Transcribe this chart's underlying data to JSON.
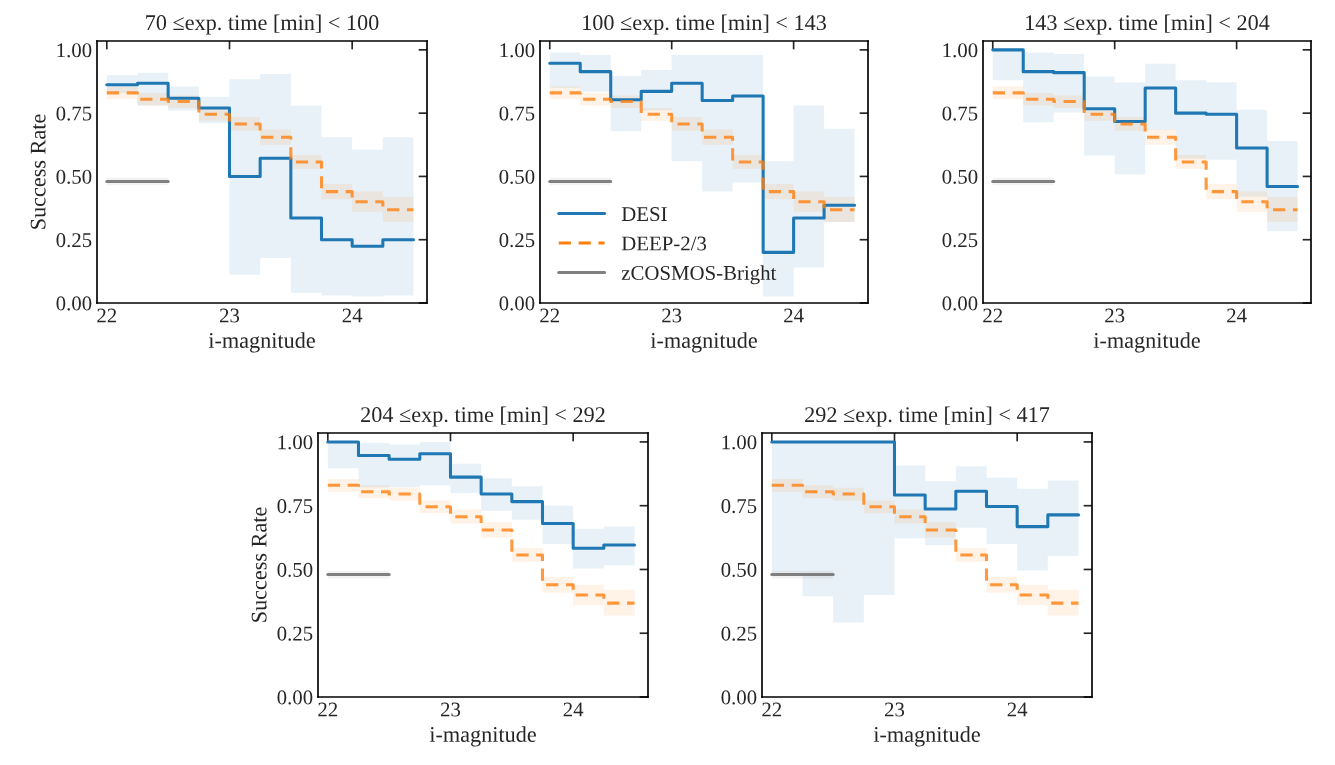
{
  "chart_data": [
    {
      "type": "step",
      "title": "70 ≤exp. time [min] < 100",
      "xlabel": "i-magnitude",
      "ylabel": "Success Rate",
      "xlim": [
        21.92,
        24.61
      ],
      "ylim": [
        0,
        1.035
      ],
      "xticks": [
        22,
        23,
        24
      ],
      "yticks": [
        {
          "value": 0,
          "label": "0.00"
        },
        {
          "value": 0.25,
          "label": "0.25"
        },
        {
          "value": 0.5,
          "label": "0.50"
        },
        {
          "value": 0.75,
          "label": "0.75"
        },
        {
          "value": 1,
          "label": "1.00"
        }
      ],
      "series": [
        {
          "color": "#1f77b4",
          "line_style": "solid",
          "x": [
            22,
            22.25,
            22.5,
            22.75,
            23,
            23.25,
            23.5,
            23.75,
            24,
            24.25,
            24.5
          ],
          "values": [
            0.862,
            0.868,
            0.809,
            0.77,
            0.5,
            0.572,
            0.336,
            0.25,
            0.224,
            0.25,
            0.25
          ],
          "lower": [
            0.83,
            0.78,
            0.76,
            0.71,
            0.112,
            0.178,
            0.04,
            0.03,
            0.026,
            0.03,
            0.03
          ],
          "upper": [
            0.9,
            0.91,
            0.855,
            0.815,
            0.884,
            0.905,
            0.779,
            0.655,
            0.605,
            0.655,
            0.655
          ]
        },
        {
          "color": "#ff7f0e",
          "line_style": "dashed",
          "x": [
            22,
            22.25,
            22.5,
            22.75,
            23,
            23.25,
            23.5,
            23.75,
            24,
            24.25,
            24.5
          ],
          "values": [
            0.83,
            0.805,
            0.796,
            0.746,
            0.707,
            0.655,
            0.557,
            0.44,
            0.4,
            0.368,
            0.368
          ],
          "lower": [
            0.805,
            0.78,
            0.77,
            0.72,
            0.68,
            0.625,
            0.53,
            0.41,
            0.36,
            0.32,
            0.32
          ],
          "upper": [
            0.855,
            0.83,
            0.82,
            0.77,
            0.735,
            0.685,
            0.585,
            0.47,
            0.44,
            0.42,
            0.42
          ]
        },
        {
          "color": "#808080",
          "line_style": "solid",
          "x": [
            22,
            22.5
          ],
          "values": [
            0.48,
            0.48
          ],
          "lower": [
            0.465,
            0.465
          ],
          "upper": [
            0.495,
            0.495
          ]
        }
      ]
    },
    {
      "type": "step",
      "title": "100 ≤exp. time [min] < 143",
      "xlabel": "i-magnitude",
      "xlim": [
        21.92,
        24.61
      ],
      "ylim": [
        0,
        1.035
      ],
      "xticks": [
        22,
        23,
        24
      ],
      "yticks": [
        {
          "value": 0,
          "label": "0.00"
        },
        {
          "value": 0.25,
          "label": "0.25"
        },
        {
          "value": 0.5,
          "label": "0.50"
        },
        {
          "value": 0.75,
          "label": "0.75"
        },
        {
          "value": 1,
          "label": "1.00"
        }
      ],
      "legend": "bottom left",
      "series": [
        {
          "name": "DESI",
          "color": "#1f77b4",
          "line_style": "solid",
          "x": [
            22,
            22.25,
            22.5,
            22.75,
            23,
            23.25,
            23.5,
            23.75,
            24,
            24.25,
            24.5
          ],
          "values": [
            0.947,
            0.914,
            0.803,
            0.836,
            0.868,
            0.8,
            0.818,
            0.2,
            0.336,
            0.386,
            0.386
          ],
          "lower": [
            0.85,
            0.835,
            0.678,
            0.76,
            0.56,
            0.44,
            0.476,
            0.026,
            0.14,
            0.32,
            0.32
          ],
          "upper": [
            0.99,
            0.98,
            0.897,
            0.92,
            0.98,
            0.98,
            0.98,
            0.56,
            0.78,
            0.688,
            0.688
          ]
        },
        {
          "name": "DEEP-2/3",
          "color": "#ff7f0e",
          "line_style": "dashed",
          "x": [
            22,
            22.25,
            22.5,
            22.75,
            23,
            23.25,
            23.5,
            23.75,
            24,
            24.25,
            24.5
          ],
          "values": [
            0.83,
            0.805,
            0.796,
            0.746,
            0.707,
            0.655,
            0.557,
            0.44,
            0.4,
            0.368,
            0.368
          ],
          "lower": [
            0.805,
            0.78,
            0.77,
            0.72,
            0.68,
            0.625,
            0.53,
            0.41,
            0.36,
            0.32,
            0.32
          ],
          "upper": [
            0.855,
            0.83,
            0.82,
            0.77,
            0.735,
            0.685,
            0.585,
            0.47,
            0.44,
            0.42,
            0.42
          ]
        },
        {
          "name": "zCOSMOS-Bright",
          "color": "#808080",
          "line_style": "solid",
          "x": [
            22,
            22.5
          ],
          "values": [
            0.48,
            0.48
          ],
          "lower": [
            0.465,
            0.465
          ],
          "upper": [
            0.495,
            0.495
          ]
        }
      ]
    },
    {
      "type": "step",
      "title": "143 ≤exp. time [min] < 204",
      "xlabel": "i-magnitude",
      "xlim": [
        21.92,
        24.61
      ],
      "ylim": [
        0,
        1.035
      ],
      "xticks": [
        22,
        23,
        24
      ],
      "yticks": [
        {
          "value": 0,
          "label": "0.00"
        },
        {
          "value": 0.25,
          "label": "0.25"
        },
        {
          "value": 0.5,
          "label": "0.50"
        },
        {
          "value": 0.75,
          "label": "0.75"
        },
        {
          "value": 1,
          "label": "1.00"
        }
      ],
      "series": [
        {
          "color": "#1f77b4",
          "line_style": "solid",
          "x": [
            22,
            22.25,
            22.5,
            22.75,
            23,
            23.25,
            23.5,
            23.75,
            24,
            24.25,
            24.5
          ],
          "values": [
            1.0,
            0.914,
            0.91,
            0.767,
            0.717,
            0.849,
            0.75,
            0.746,
            0.612,
            0.46,
            0.46
          ],
          "lower": [
            0.88,
            0.714,
            0.753,
            0.583,
            0.509,
            0.684,
            0.57,
            0.566,
            0.42,
            0.283,
            0.283
          ],
          "upper": [
            1.0,
            0.99,
            0.984,
            0.895,
            0.871,
            0.945,
            0.88,
            0.872,
            0.763,
            0.64,
            0.64
          ]
        },
        {
          "color": "#ff7f0e",
          "line_style": "dashed",
          "x": [
            22,
            22.25,
            22.5,
            22.75,
            23,
            23.25,
            23.5,
            23.75,
            24,
            24.25,
            24.5
          ],
          "values": [
            0.83,
            0.805,
            0.796,
            0.746,
            0.707,
            0.655,
            0.557,
            0.44,
            0.4,
            0.368,
            0.368
          ],
          "lower": [
            0.805,
            0.78,
            0.77,
            0.72,
            0.68,
            0.625,
            0.53,
            0.41,
            0.36,
            0.32,
            0.32
          ],
          "upper": [
            0.855,
            0.83,
            0.82,
            0.77,
            0.735,
            0.685,
            0.585,
            0.47,
            0.44,
            0.42,
            0.42
          ]
        },
        {
          "color": "#808080",
          "line_style": "solid",
          "x": [
            22,
            22.5
          ],
          "values": [
            0.48,
            0.48
          ],
          "lower": [
            0.465,
            0.465
          ],
          "upper": [
            0.495,
            0.495
          ]
        }
      ]
    },
    {
      "type": "step",
      "title": "204 ≤exp. time [min] < 292",
      "xlabel": "i-magnitude",
      "ylabel": "Success Rate",
      "xlim": [
        21.92,
        24.61
      ],
      "ylim": [
        0,
        1.035
      ],
      "xticks": [
        22,
        23,
        24
      ],
      "yticks": [
        {
          "value": 0,
          "label": "0.00"
        },
        {
          "value": 0.25,
          "label": "0.25"
        },
        {
          "value": 0.5,
          "label": "0.50"
        },
        {
          "value": 0.75,
          "label": "0.75"
        },
        {
          "value": 1,
          "label": "1.00"
        }
      ],
      "series": [
        {
          "color": "#1f77b4",
          "line_style": "solid",
          "x": [
            22,
            22.25,
            22.5,
            22.75,
            23,
            23.25,
            23.5,
            23.75,
            24,
            24.25,
            24.5
          ],
          "values": [
            1.0,
            0.947,
            0.932,
            0.954,
            0.862,
            0.796,
            0.766,
            0.68,
            0.583,
            0.596,
            0.596
          ],
          "lower": [
            0.897,
            0.822,
            0.822,
            0.83,
            0.8,
            0.73,
            0.695,
            0.6,
            0.504,
            0.517,
            0.517
          ],
          "upper": [
            1.0,
            0.996,
            0.99,
            1.0,
            0.914,
            0.858,
            0.826,
            0.75,
            0.66,
            0.668,
            0.668
          ]
        },
        {
          "color": "#ff7f0e",
          "line_style": "dashed",
          "x": [
            22,
            22.25,
            22.5,
            22.75,
            23,
            23.25,
            23.5,
            23.75,
            24,
            24.25,
            24.5
          ],
          "values": [
            0.83,
            0.805,
            0.796,
            0.746,
            0.707,
            0.655,
            0.557,
            0.44,
            0.4,
            0.368,
            0.368
          ],
          "lower": [
            0.805,
            0.78,
            0.77,
            0.72,
            0.68,
            0.625,
            0.53,
            0.41,
            0.36,
            0.32,
            0.32
          ],
          "upper": [
            0.855,
            0.83,
            0.82,
            0.77,
            0.735,
            0.685,
            0.585,
            0.47,
            0.44,
            0.42,
            0.42
          ]
        },
        {
          "color": "#808080",
          "line_style": "solid",
          "x": [
            22,
            22.5
          ],
          "values": [
            0.48,
            0.48
          ],
          "lower": [
            0.465,
            0.465
          ],
          "upper": [
            0.495,
            0.495
          ]
        }
      ]
    },
    {
      "type": "step",
      "title": "292 ≤exp. time [min] < 417",
      "xlabel": "i-magnitude",
      "xlim": [
        21.92,
        24.61
      ],
      "ylim": [
        0,
        1.035
      ],
      "xticks": [
        22,
        23,
        24
      ],
      "yticks": [
        {
          "value": 0,
          "label": "0.00"
        },
        {
          "value": 0.25,
          "label": "0.25"
        },
        {
          "value": 0.5,
          "label": "0.50"
        },
        {
          "value": 0.75,
          "label": "0.75"
        },
        {
          "value": 1,
          "label": "1.00"
        }
      ],
      "series": [
        {
          "color": "#1f77b4",
          "line_style": "solid",
          "x": [
            22,
            22.25,
            22.5,
            22.75,
            23,
            23.25,
            23.5,
            23.75,
            24,
            24.25,
            24.5
          ],
          "values": [
            1.0,
            1.0,
            1.0,
            1.0,
            0.792,
            0.737,
            0.807,
            0.747,
            0.668,
            0.714,
            0.714
          ],
          "lower": [
            0.487,
            0.395,
            0.292,
            0.4,
            0.622,
            0.595,
            0.664,
            0.6,
            0.496,
            0.553,
            0.553
          ],
          "upper": [
            1.0,
            1.0,
            1.0,
            1.0,
            0.908,
            0.846,
            0.905,
            0.86,
            0.816,
            0.849,
            0.849
          ]
        },
        {
          "color": "#ff7f0e",
          "line_style": "dashed",
          "x": [
            22,
            22.25,
            22.5,
            22.75,
            23,
            23.25,
            23.5,
            23.75,
            24,
            24.25,
            24.5
          ],
          "values": [
            0.83,
            0.805,
            0.796,
            0.746,
            0.707,
            0.655,
            0.557,
            0.44,
            0.4,
            0.368,
            0.368
          ],
          "lower": [
            0.805,
            0.78,
            0.77,
            0.72,
            0.68,
            0.625,
            0.53,
            0.41,
            0.36,
            0.32,
            0.32
          ],
          "upper": [
            0.855,
            0.83,
            0.82,
            0.77,
            0.735,
            0.685,
            0.585,
            0.47,
            0.44,
            0.42,
            0.42
          ]
        },
        {
          "color": "#808080",
          "line_style": "solid",
          "x": [
            22,
            22.5
          ],
          "values": [
            0.48,
            0.48
          ],
          "lower": [
            0.465,
            0.465
          ],
          "upper": [
            0.495,
            0.495
          ]
        }
      ]
    }
  ]
}
